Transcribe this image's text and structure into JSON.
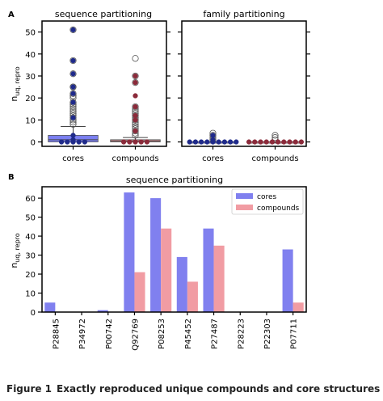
{
  "chart_data": [
    {
      "type": "box",
      "panel_label": "A",
      "title": "sequence partitioning",
      "ylabel_main": "n",
      "ylabel_sub": "uq, repro",
      "ylim": [
        -2,
        55
      ],
      "yticks": [
        "0",
        "10",
        "20",
        "30",
        "40",
        "50"
      ],
      "categories": [
        "cores",
        "compounds"
      ],
      "boxes": [
        {
          "name": "cores",
          "q1": 0,
          "median": 1,
          "q3": 3,
          "whisker_low": 0,
          "whisker_high": 7,
          "outliers": [
            8,
            9,
            10,
            11,
            12,
            13,
            14,
            15,
            16,
            17,
            18,
            20,
            21,
            22,
            25,
            25,
            31,
            37,
            51
          ],
          "points": [
            0,
            0,
            0,
            0,
            0,
            1,
            3,
            11,
            18,
            22,
            25,
            31,
            37,
            51
          ]
        },
        {
          "name": "compounds",
          "q1": 0,
          "median": 0.5,
          "q3": 1,
          "whisker_low": 0,
          "whisker_high": 2,
          "outliers": [
            3,
            4,
            5,
            6,
            7,
            8,
            9,
            10,
            11,
            12,
            13,
            14,
            15,
            16,
            27,
            30,
            38
          ],
          "points": [
            0,
            0,
            0,
            0,
            0,
            5,
            10,
            12,
            16,
            21,
            27,
            30
          ]
        }
      ]
    },
    {
      "type": "box",
      "title": "family partitioning",
      "ylim": [
        -2,
        55
      ],
      "categories": [
        "cores",
        "compounds"
      ],
      "boxes": [
        {
          "name": "cores",
          "q1": 0,
          "median": 0,
          "q3": 0,
          "whisker_low": 0,
          "whisker_high": 0,
          "outliers": [
            1,
            2,
            3,
            4
          ],
          "points": [
            0,
            0,
            0,
            0,
            0,
            0,
            0,
            0,
            0,
            1,
            3
          ]
        },
        {
          "name": "compounds",
          "q1": 0,
          "median": 0,
          "q3": 0,
          "whisker_low": 0,
          "whisker_high": 0,
          "outliers": [
            1,
            2,
            3
          ],
          "points": [
            0,
            0,
            0,
            0,
            0,
            0,
            0,
            0,
            0,
            0
          ]
        }
      ]
    },
    {
      "type": "bar",
      "panel_label": "B",
      "title": "sequence partitioning",
      "ylabel_main": "n",
      "ylabel_sub": "uq, repro",
      "ylim": [
        0,
        66
      ],
      "yticks": [
        "0",
        "10",
        "20",
        "30",
        "40",
        "50",
        "60"
      ],
      "categories": [
        "P28845",
        "P34972",
        "P00742",
        "Q92769",
        "P08253",
        "P45452",
        "P27487",
        "P28223",
        "P22303",
        "P07711"
      ],
      "series": [
        {
          "name": "cores",
          "values": [
            5,
            0,
            1,
            63,
            60,
            29,
            44,
            0,
            0,
            33
          ]
        },
        {
          "name": "compounds",
          "values": [
            0,
            0,
            0,
            21,
            44,
            16,
            35,
            0,
            0,
            5
          ]
        }
      ],
      "legend": "top-right",
      "grid": false
    }
  ],
  "colors": {
    "cores_box": "#7b7ff0",
    "compounds_box": "#ee9aa1",
    "cores_bar": "#8080ef",
    "compounds_bar": "#f19ca3",
    "cores_point": "#1f2a8a",
    "compounds_point": "#8b2a3a",
    "outlier_edge": "#555555"
  },
  "caption": {
    "label": "Figure 1",
    "text": "Exactly reproduced unique compounds and core structures"
  }
}
